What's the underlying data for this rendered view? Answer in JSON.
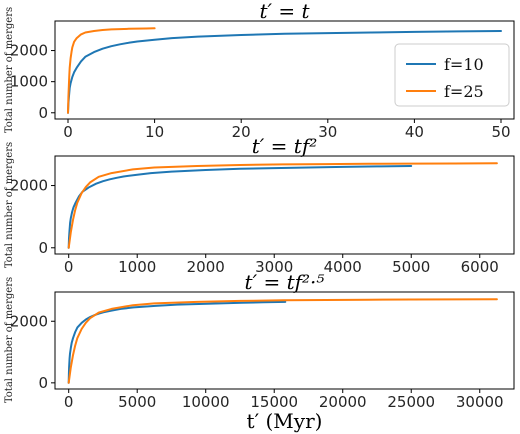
{
  "chart_data": [
    {
      "type": "line",
      "title": "t′ = t",
      "ylabel": "Total number of mergers",
      "xlabel": "",
      "xlim": [
        -1.5,
        51.5
      ],
      "ylim": [
        -200,
        2950
      ],
      "xticks": [
        0,
        10,
        20,
        30,
        40,
        50
      ],
      "yticks": [
        0,
        1000,
        2000
      ],
      "legend": {
        "location": "right",
        "entries": [
          "f=10",
          "f=25"
        ]
      },
      "series": [
        {
          "name": "f=10",
          "color": "#1f77b4",
          "x": [
            0,
            0.05,
            0.1,
            0.2,
            0.3,
            0.5,
            0.7,
            1,
            1.5,
            2,
            3,
            4,
            5,
            6,
            7,
            8,
            10,
            12,
            15,
            20,
            25,
            30,
            35,
            40,
            45,
            50
          ],
          "y": [
            0,
            300,
            500,
            800,
            950,
            1150,
            1300,
            1450,
            1650,
            1800,
            1950,
            2060,
            2140,
            2200,
            2250,
            2290,
            2350,
            2400,
            2450,
            2500,
            2540,
            2560,
            2580,
            2600,
            2615,
            2630
          ]
        },
        {
          "name": "f=25",
          "color": "#ff7f0e",
          "x": [
            0,
            0.05,
            0.1,
            0.15,
            0.2,
            0.3,
            0.4,
            0.5,
            0.7,
            1,
            1.5,
            2,
            3,
            4,
            5,
            6,
            7,
            8,
            9,
            10
          ],
          "y": [
            0,
            500,
            900,
            1200,
            1450,
            1750,
            1950,
            2100,
            2280,
            2400,
            2520,
            2580,
            2630,
            2660,
            2680,
            2690,
            2700,
            2705,
            2710,
            2715
          ]
        }
      ]
    },
    {
      "type": "line",
      "title": "t′ = tf²",
      "ylabel": "Total number of mergers",
      "xlabel": "",
      "xlim": [
        -200,
        6500
      ],
      "ylim": [
        -200,
        2950
      ],
      "xticks": [
        0,
        1000,
        2000,
        3000,
        4000,
        5000,
        6000
      ],
      "yticks": [
        0,
        2000
      ],
      "series": [
        {
          "name": "f=10",
          "color": "#1f77b4",
          "x": [
            0,
            5,
            10,
            20,
            30,
            50,
            70,
            100,
            150,
            200,
            300,
            400,
            500,
            600,
            700,
            800,
            1000,
            1200,
            1500,
            2000,
            2500,
            3000,
            3500,
            4000,
            4500,
            5000
          ],
          "y": [
            0,
            300,
            500,
            800,
            950,
            1150,
            1300,
            1450,
            1650,
            1800,
            1950,
            2060,
            2140,
            2200,
            2250,
            2290,
            2350,
            2400,
            2450,
            2500,
            2540,
            2560,
            2580,
            2600,
            2615,
            2630
          ]
        },
        {
          "name": "f=25",
          "color": "#ff7f0e",
          "x": [
            0,
            31.25,
            62.5,
            93.75,
            125,
            187.5,
            250,
            312.5,
            437.5,
            625,
            937.5,
            1250,
            1875,
            2500,
            3125,
            3750,
            4375,
            5000,
            5625,
            6250
          ],
          "y": [
            0,
            500,
            900,
            1200,
            1450,
            1750,
            1950,
            2100,
            2280,
            2400,
            2520,
            2580,
            2630,
            2660,
            2680,
            2690,
            2700,
            2705,
            2710,
            2715
          ]
        }
      ]
    },
    {
      "type": "line",
      "title": "t′ = tf²·⁵",
      "ylabel": "Total number of mergers",
      "xlabel": "t′ (Myr)",
      "xlim": [
        -1000,
        32500
      ],
      "ylim": [
        -200,
        2950
      ],
      "xticks": [
        0,
        5000,
        10000,
        15000,
        20000,
        25000,
        30000
      ],
      "yticks": [
        0,
        2000
      ],
      "series": [
        {
          "name": "f=10",
          "color": "#1f77b4",
          "x": [
            0,
            15.8,
            31.6,
            63.2,
            94.9,
            158,
            221,
            316,
            474,
            632,
            949,
            1265,
            1581,
            1897,
            2214,
            2530,
            3162,
            3795,
            4743,
            6325,
            7906,
            9487,
            11068,
            12649,
            14230,
            15811
          ],
          "y": [
            0,
            300,
            500,
            800,
            950,
            1150,
            1300,
            1450,
            1650,
            1800,
            1950,
            2060,
            2140,
            2200,
            2250,
            2290,
            2350,
            2400,
            2450,
            2500,
            2540,
            2560,
            2580,
            2600,
            2615,
            2630
          ]
        },
        {
          "name": "f=25",
          "color": "#ff7f0e",
          "x": [
            0,
            156,
            313,
            469,
            625,
            938,
            1250,
            1563,
            2188,
            3125,
            4688,
            6250,
            9375,
            12500,
            15625,
            18750,
            21875,
            25000,
            28125,
            31250
          ],
          "y": [
            0,
            500,
            900,
            1200,
            1450,
            1750,
            1950,
            2100,
            2280,
            2400,
            2520,
            2580,
            2630,
            2660,
            2680,
            2690,
            2700,
            2705,
            2710,
            2715
          ]
        }
      ]
    }
  ]
}
